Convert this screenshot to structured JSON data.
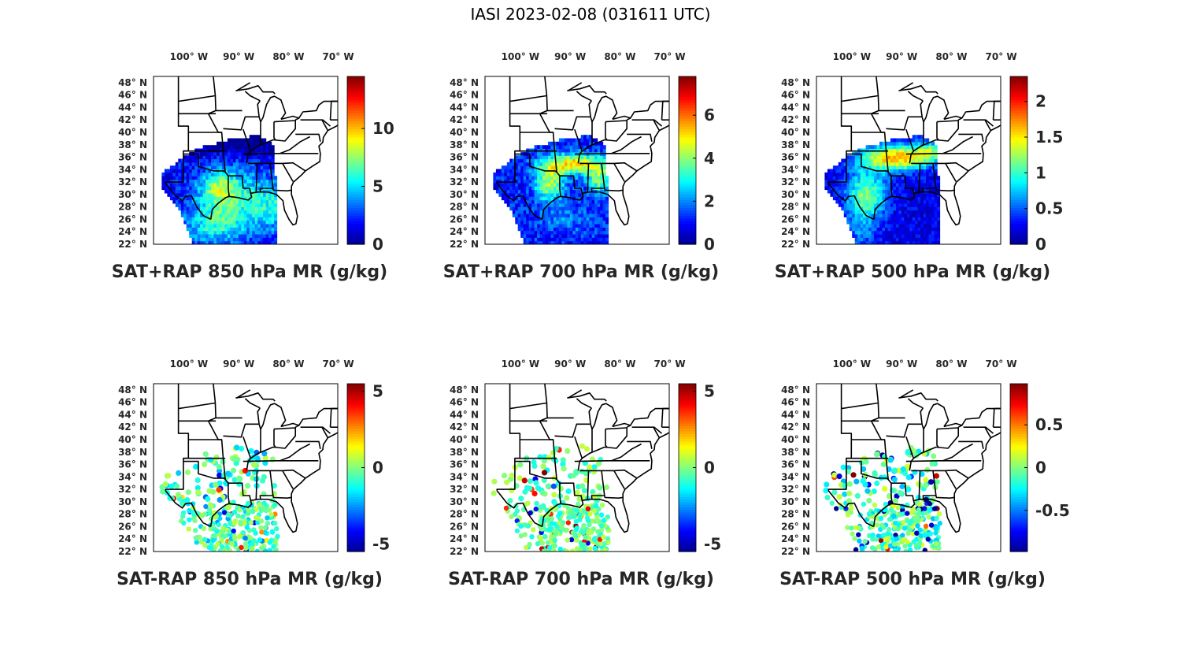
{
  "figure_title": "IASI 2023-02-08 (031611 UTC)",
  "colormap": "jet",
  "colormap_stops": [
    "#00008f",
    "#0000ff",
    "#0080ff",
    "#00ffff",
    "#80ff80",
    "#ffff00",
    "#ff8000",
    "#ff0000",
    "#800000"
  ],
  "map": {
    "lon_tick_labels": [
      "100° W",
      "90° W",
      "80° W",
      "70° W"
    ],
    "lat_tick_labels": [
      "48° N",
      "46° N",
      "44° N",
      "42° N",
      "40° N",
      "38° N",
      "36° N",
      "34° N",
      "32° N",
      "30° N",
      "28° N",
      "26° N",
      "24° N",
      "22° N"
    ],
    "lon_ticks": [
      -100,
      -90,
      -80,
      -70
    ],
    "lat_ticks": [
      48,
      46,
      44,
      42,
      40,
      38,
      36,
      34,
      32,
      30,
      28,
      26,
      24,
      22
    ],
    "lon_range": [
      -109,
      -72
    ],
    "lat_range": [
      22,
      49
    ]
  },
  "panels": [
    {
      "title": "SAT+RAP 850 hPa MR (g/kg)",
      "kind": "field",
      "pattern": "p850",
      "colorbar": {
        "range": [
          0,
          14.5
        ],
        "tick_labels": [
          "0",
          "5",
          "10"
        ],
        "ticks": [
          0,
          5,
          10
        ]
      }
    },
    {
      "title": "SAT+RAP 700 hPa MR (g/kg)",
      "kind": "field",
      "pattern": "p700",
      "colorbar": {
        "range": [
          0,
          7.8
        ],
        "tick_labels": [
          "0",
          "2",
          "4",
          "6"
        ],
        "ticks": [
          0,
          2,
          4,
          6
        ]
      }
    },
    {
      "title": "SAT+RAP 500 hPa MR (g/kg)",
      "kind": "field",
      "pattern": "p500",
      "colorbar": {
        "range": [
          0,
          2.35
        ],
        "tick_labels": [
          "0",
          "0.5",
          "1",
          "1.5",
          "2"
        ],
        "ticks": [
          0,
          0.5,
          1,
          1.5,
          2
        ]
      }
    },
    {
      "title": "SAT-RAP 850 hPa MR (g/kg)",
      "kind": "diff",
      "pattern": "d850",
      "colorbar": {
        "range": [
          -5.5,
          5.5
        ],
        "tick_labels": [
          "-5",
          "0",
          "5"
        ],
        "ticks": [
          -5,
          0,
          5
        ]
      }
    },
    {
      "title": "SAT-RAP 700 hPa MR (g/kg)",
      "kind": "diff",
      "pattern": "d700",
      "colorbar": {
        "range": [
          -5.5,
          5.5
        ],
        "tick_labels": [
          "-5",
          "0",
          "5"
        ],
        "ticks": [
          -5,
          0,
          5
        ]
      }
    },
    {
      "title": "SAT-RAP 500 hPa MR (g/kg)",
      "kind": "diff",
      "pattern": "d500",
      "colorbar": {
        "range": [
          -0.98,
          0.98
        ],
        "tick_labels": [
          "-0.5",
          "0",
          "0.5"
        ],
        "ticks": [
          -0.5,
          0,
          0.5
        ]
      }
    }
  ]
}
